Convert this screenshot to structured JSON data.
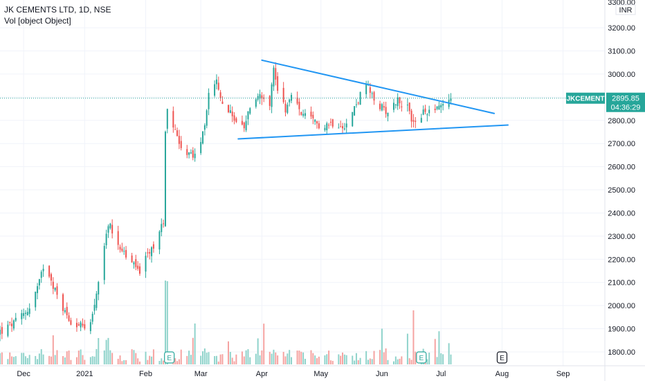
{
  "header": {
    "title": "JK CEMENTS LTD, 1D, NSE",
    "volume_label": "Vol [object Object]"
  },
  "price_scale": {
    "currency": "INR",
    "top_cut_label": "3300.00"
  },
  "last_price": {
    "symbol": "JKCEMENT",
    "value": "2895.85",
    "countdown": "04:36:29"
  },
  "earnings_marker": "E",
  "colors": {
    "up": "#26a69a",
    "down": "#ef5350",
    "vol_up": "#8fd3cb",
    "vol_down": "#f5a3a1",
    "trendline": "#2196f3",
    "last_price": "#26a69a"
  },
  "chart_data": {
    "type": "candlestick",
    "title": "JK CEMENTS LTD, 1D, NSE",
    "ylim": [
      1740,
      3320
    ],
    "y_ticks": [
      1800,
      1900,
      2000,
      2100,
      2200,
      2300,
      2400,
      2500,
      2600,
      2700,
      2800,
      2900,
      3000,
      3100,
      3200
    ],
    "y_tick_labels": [
      "1800.00",
      "1900.00",
      "2000.00",
      "2100.00",
      "2200.00",
      "2300.00",
      "2400.00",
      "2500.00",
      "2600.00",
      "2700.00",
      "2800.00",
      "2900.00",
      "3000.00",
      "3100.00",
      "3200.00"
    ],
    "x_tick_labels": [
      "Dec",
      "2021",
      "Feb",
      "Mar",
      "Apr",
      "May",
      "Jun",
      "Jul",
      "Aug",
      "Sep"
    ],
    "x_tick_dates": [
      "2020-12-01",
      "2021-01-01",
      "2021-02-01",
      "2021-03-01",
      "2021-04-01",
      "2021-05-01",
      "2021-06-01",
      "2021-07-01",
      "2021-08-01",
      "2021-09-01"
    ],
    "date_range": [
      "2020-11-19",
      "2021-09-18"
    ],
    "close_anchors": [
      [
        "2020-11-20",
        1890
      ],
      [
        "2020-11-27",
        1930
      ],
      [
        "2020-12-04",
        1990
      ],
      [
        "2020-12-09",
        2100
      ],
      [
        "2020-12-11",
        2170
      ],
      [
        "2020-12-14",
        2140
      ],
      [
        "2020-12-18",
        2040
      ],
      [
        "2020-12-24",
        1940
      ],
      [
        "2021-01-01",
        1900
      ],
      [
        "2021-01-05",
        1960
      ],
      [
        "2021-01-07",
        2060
      ],
      [
        "2021-01-11",
        2240
      ],
      [
        "2021-01-13",
        2360
      ],
      [
        "2021-01-15",
        2320
      ],
      [
        "2021-01-22",
        2210
      ],
      [
        "2021-01-29",
        2150
      ],
      [
        "2021-02-03",
        2230
      ],
      [
        "2021-02-08",
        2310
      ],
      [
        "2021-02-10",
        2370
      ],
      [
        "2021-02-11",
        2760
      ],
      [
        "2021-02-12",
        2850
      ],
      [
        "2021-02-16",
        2760
      ],
      [
        "2021-02-19",
        2690
      ],
      [
        "2021-02-25",
        2640
      ],
      [
        "2021-03-02",
        2740
      ],
      [
        "2021-03-05",
        2910
      ],
      [
        "2021-03-09",
        2960
      ],
      [
        "2021-03-12",
        2870
      ],
      [
        "2021-03-19",
        2800
      ],
      [
        "2021-03-23",
        2760
      ],
      [
        "2021-03-26",
        2860
      ],
      [
        "2021-03-31",
        2920
      ],
      [
        "2021-04-05",
        2880
      ],
      [
        "2021-04-07",
        3020
      ],
      [
        "2021-04-09",
        2940
      ],
      [
        "2021-04-13",
        2850
      ],
      [
        "2021-04-16",
        2900
      ],
      [
        "2021-04-22",
        2820
      ],
      [
        "2021-04-30",
        2780
      ],
      [
        "2021-05-07",
        2790
      ],
      [
        "2021-05-14",
        2780
      ],
      [
        "2021-05-20",
        2890
      ],
      [
        "2021-05-24",
        2960
      ],
      [
        "2021-05-27",
        2900
      ],
      [
        "2021-05-31",
        2860
      ],
      [
        "2021-06-04",
        2840
      ],
      [
        "2021-06-09",
        2890
      ],
      [
        "2021-06-14",
        2850
      ],
      [
        "2021-06-17",
        2790
      ],
      [
        "2021-06-22",
        2830
      ],
      [
        "2021-06-28",
        2860
      ],
      [
        "2021-07-02",
        2870
      ],
      [
        "2021-07-06",
        2895.85
      ]
    ],
    "triangle_upper_line": [
      [
        "2021-04-01",
        3060
      ],
      [
        "2021-07-28",
        2830
      ]
    ],
    "triangle_lower_line": [
      [
        "2021-03-20",
        2720
      ],
      [
        "2021-08-04",
        2780
      ]
    ],
    "earnings_dates": [
      "2021-02-13",
      "2021-06-21",
      "2021-08-01"
    ],
    "grid": true
  }
}
